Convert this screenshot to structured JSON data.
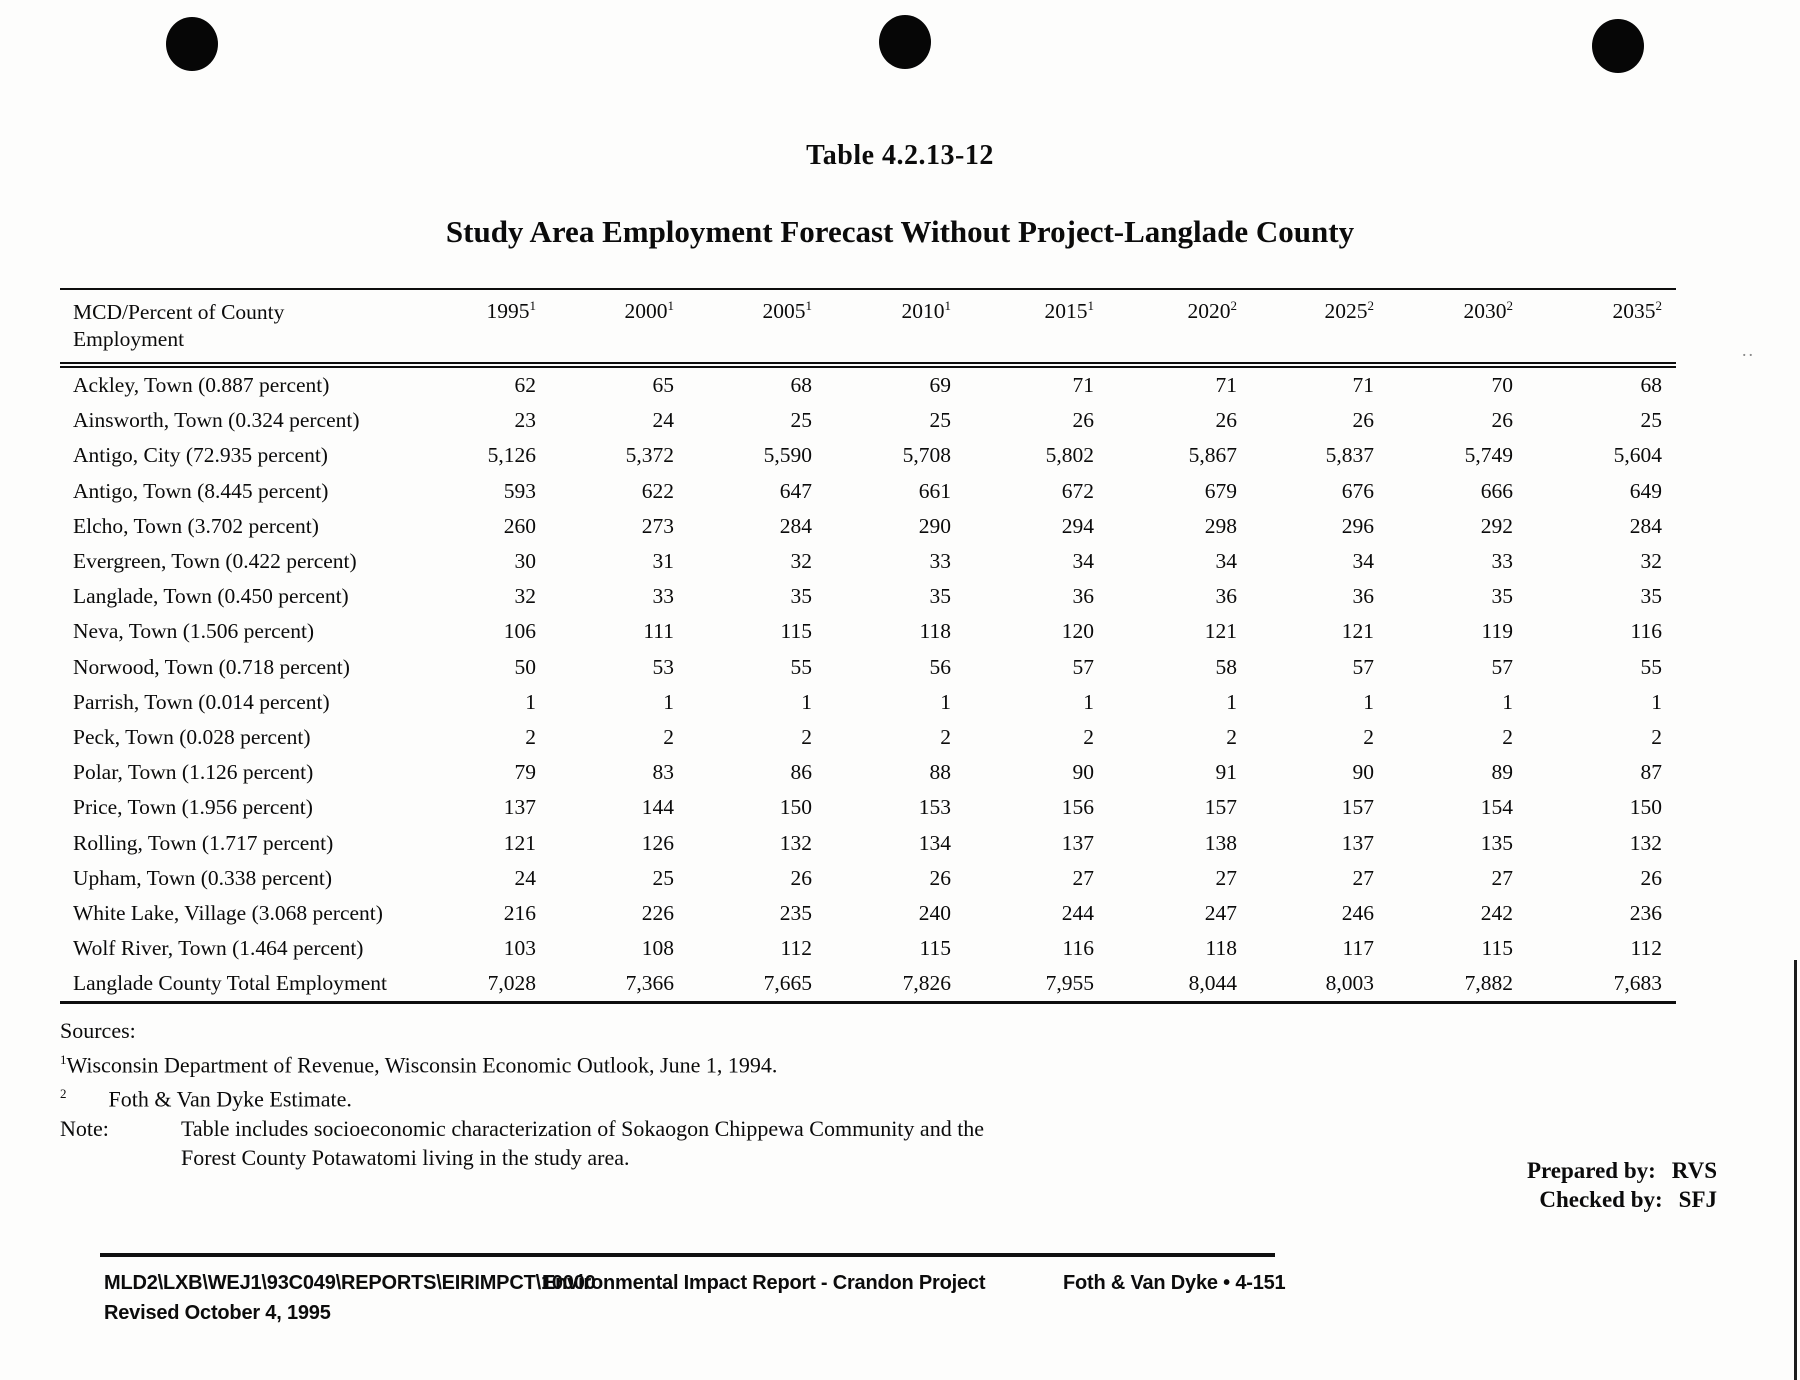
{
  "page": {
    "table_number": "Table 4.2.13-12",
    "title": "Study Area Employment Forecast Without Project-Langlade County"
  },
  "table": {
    "header_col1_line1": "MCD/Percent of County",
    "header_col1_line2": "Employment",
    "year_columns": [
      {
        "year": "1995",
        "sup": "1"
      },
      {
        "year": "2000",
        "sup": "1"
      },
      {
        "year": "2005",
        "sup": "1"
      },
      {
        "year": "2010",
        "sup": "1"
      },
      {
        "year": "2015",
        "sup": "1"
      },
      {
        "year": "2020",
        "sup": "2"
      },
      {
        "year": "2025",
        "sup": "2"
      },
      {
        "year": "2030",
        "sup": "2"
      },
      {
        "year": "2035",
        "sup": "2"
      }
    ],
    "rows": [
      {
        "mcd": "Ackley, Town (0.887 percent)",
        "values": [
          "62",
          "65",
          "68",
          "69",
          "71",
          "71",
          "71",
          "70",
          "68"
        ]
      },
      {
        "mcd": "Ainsworth, Town (0.324 percent)",
        "values": [
          "23",
          "24",
          "25",
          "25",
          "26",
          "26",
          "26",
          "26",
          "25"
        ]
      },
      {
        "mcd": "Antigo, City (72.935 percent)",
        "values": [
          "5,126",
          "5,372",
          "5,590",
          "5,708",
          "5,802",
          "5,867",
          "5,837",
          "5,749",
          "5,604"
        ]
      },
      {
        "mcd": "Antigo, Town (8.445 percent)",
        "values": [
          "593",
          "622",
          "647",
          "661",
          "672",
          "679",
          "676",
          "666",
          "649"
        ]
      },
      {
        "mcd": "Elcho, Town (3.702 percent)",
        "values": [
          "260",
          "273",
          "284",
          "290",
          "294",
          "298",
          "296",
          "292",
          "284"
        ]
      },
      {
        "mcd": "Evergreen, Town (0.422 percent)",
        "values": [
          "30",
          "31",
          "32",
          "33",
          "34",
          "34",
          "34",
          "33",
          "32"
        ]
      },
      {
        "mcd": "Langlade, Town (0.450 percent)",
        "values": [
          "32",
          "33",
          "35",
          "35",
          "36",
          "36",
          "36",
          "35",
          "35"
        ]
      },
      {
        "mcd": "Neva, Town (1.506 percent)",
        "values": [
          "106",
          "111",
          "115",
          "118",
          "120",
          "121",
          "121",
          "119",
          "116"
        ]
      },
      {
        "mcd": "Norwood, Town (0.718 percent)",
        "values": [
          "50",
          "53",
          "55",
          "56",
          "57",
          "58",
          "57",
          "57",
          "55"
        ]
      },
      {
        "mcd": "Parrish, Town (0.014 percent)",
        "values": [
          "1",
          "1",
          "1",
          "1",
          "1",
          "1",
          "1",
          "1",
          "1"
        ]
      },
      {
        "mcd": "Peck, Town (0.028 percent)",
        "values": [
          "2",
          "2",
          "2",
          "2",
          "2",
          "2",
          "2",
          "2",
          "2"
        ]
      },
      {
        "mcd": "Polar, Town (1.126 percent)",
        "values": [
          "79",
          "83",
          "86",
          "88",
          "90",
          "91",
          "90",
          "89",
          "87"
        ]
      },
      {
        "mcd": "Price, Town (1.956 percent)",
        "values": [
          "137",
          "144",
          "150",
          "153",
          "156",
          "157",
          "157",
          "154",
          "150"
        ]
      },
      {
        "mcd": "Rolling, Town (1.717 percent)",
        "values": [
          "121",
          "126",
          "132",
          "134",
          "137",
          "138",
          "137",
          "135",
          "132"
        ]
      },
      {
        "mcd": "Upham, Town (0.338 percent)",
        "values": [
          "24",
          "25",
          "26",
          "26",
          "27",
          "27",
          "27",
          "27",
          "26"
        ]
      },
      {
        "mcd": "White Lake, Village (3.068 percent)",
        "values": [
          "216",
          "226",
          "235",
          "240",
          "244",
          "247",
          "246",
          "242",
          "236"
        ]
      },
      {
        "mcd": "Wolf River, Town (1.464 percent)",
        "values": [
          "103",
          "108",
          "112",
          "115",
          "116",
          "118",
          "117",
          "115",
          "112"
        ]
      },
      {
        "mcd": "Langlade County Total Employment",
        "values": [
          "7,028",
          "7,366",
          "7,665",
          "7,826",
          "7,955",
          "8,044",
          "8,003",
          "7,882",
          "7,683"
        ]
      }
    ]
  },
  "sources": {
    "heading": "Sources:",
    "items": [
      {
        "sup": "1",
        "text": "Wisconsin Department of Revenue, Wisconsin Economic Outlook, June 1, 1994."
      },
      {
        "sup": "2",
        "text": "Foth & Van Dyke Estimate."
      }
    ],
    "note_label": "Note:",
    "note_line1": "Table includes socioeconomic characterization of Sokaogon Chippewa Community and the",
    "note_line2": "Forest County Potawatomi living in the study area."
  },
  "signoff": {
    "prepared_label": "Prepared by:",
    "prepared_value": "RVS",
    "checked_label": "Checked by:",
    "checked_value": "SFJ"
  },
  "footer": {
    "file_path": "MLD2\\LXB\\WEJ1\\93C049\\REPORTS\\EIRIMPCT\\10000",
    "report_title": "Environmental Impact Report - Crandon Project",
    "org_page": "Foth & Van Dyke • 4-151",
    "revised": "Revised October 4, 1995"
  }
}
